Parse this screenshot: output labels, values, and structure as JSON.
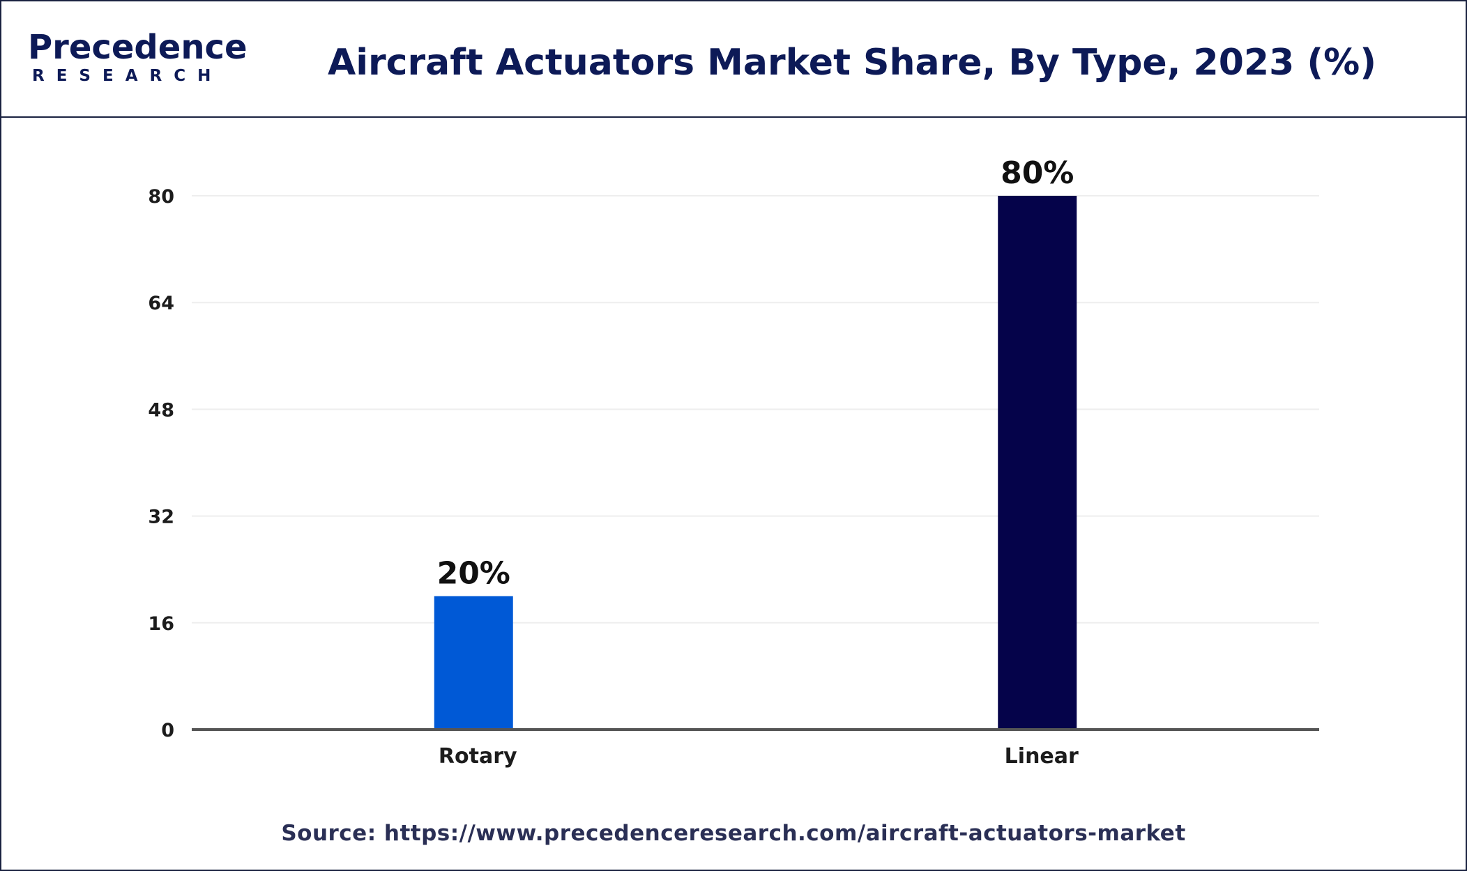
{
  "header": {
    "logo_main": "Precedence",
    "logo_sub": "RESEARCH",
    "title": "Aircraft Actuators Market Share, By Type, 2023 (%)"
  },
  "footer": {
    "source": "Source: https://www.precedenceresearch.com/aircraft-actuators-market"
  },
  "chart_data": {
    "type": "bar",
    "categories": [
      "Rotary",
      "Linear"
    ],
    "values": [
      20,
      80
    ],
    "value_labels": [
      "20%",
      "80%"
    ],
    "colors": [
      "#0059d6",
      "#05034a"
    ],
    "yticks": [
      0,
      16,
      32,
      48,
      64,
      80
    ],
    "ylim": [
      0,
      80
    ],
    "grid": true,
    "legend": "none",
    "xlabel": "",
    "ylabel": ""
  }
}
